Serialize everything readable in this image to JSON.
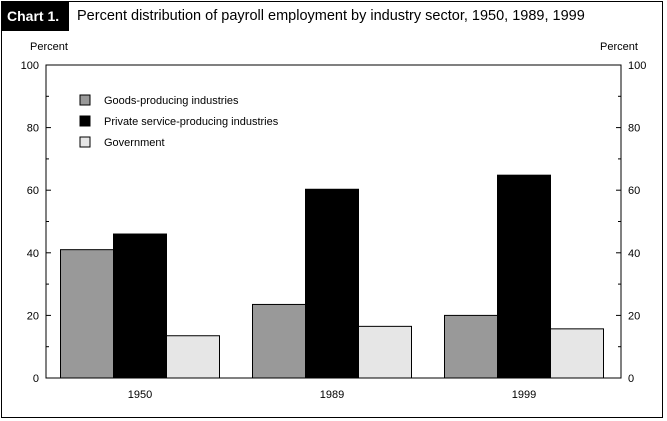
{
  "header": {
    "label": "Chart 1.",
    "title": "Percent distribution of payroll employment by industry sector, 1950, 1989, 1999"
  },
  "chart_data": {
    "type": "bar",
    "title": "Percent distribution of payroll employment by industry sector, 1950, 1989, 1999",
    "ylabel_left": "Percent",
    "ylabel_right": "Percent",
    "xlabel": "",
    "categories": [
      "1950",
      "1989",
      "1999"
    ],
    "ylim": [
      0,
      100
    ],
    "yticks": [
      0,
      20,
      40,
      60,
      80,
      100
    ],
    "grid": false,
    "legend_position": "top-left",
    "series": [
      {
        "name": "Goods-producing industries",
        "color": "#999999",
        "values": [
          41,
          23.5,
          20
        ]
      },
      {
        "name": "Private service-producing industries",
        "color": "#000000",
        "values": [
          46,
          60.3,
          64.8
        ]
      },
      {
        "name": "Government",
        "color": "#e6e6e6",
        "values": [
          13.5,
          16.5,
          15.7
        ]
      }
    ]
  }
}
